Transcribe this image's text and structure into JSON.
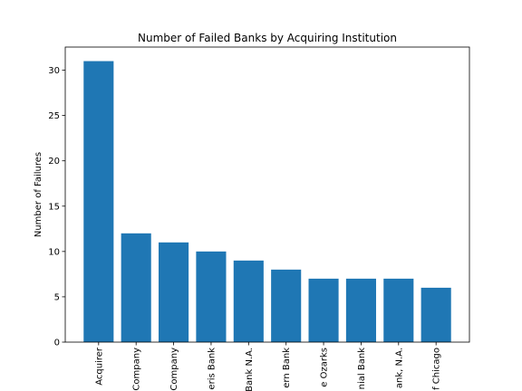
{
  "chart_data": {
    "type": "bar",
    "title": "Number of Failed Banks by Acquiring Institution",
    "y_label": "Number of Failures",
    "categories": [
      "Acquirer",
      "Company",
      "Company",
      "eris Bank",
      "Bank N.A.",
      "ern Bank",
      "e Ozarks",
      "nial Bank",
      "ank, N.A.",
      "f Chicago"
    ],
    "values": [
      31,
      12,
      11,
      10,
      9,
      8,
      7,
      7,
      7,
      6
    ],
    "color": "#1f77b4",
    "ylim": [
      0,
      32.55
    ],
    "yticks": [
      0,
      5,
      10,
      15,
      20,
      25,
      30
    ],
    "grid": false
  }
}
